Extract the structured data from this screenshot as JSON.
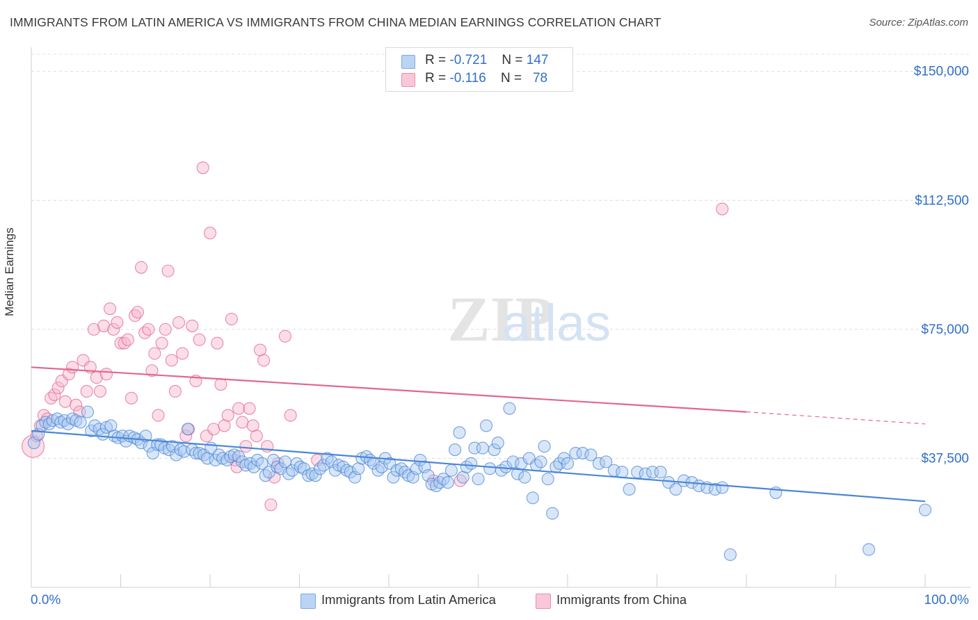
{
  "header": {
    "title": "IMMIGRANTS FROM LATIN AMERICA VS IMMIGRANTS FROM CHINA MEDIAN EARNINGS CORRELATION CHART",
    "source": "Source: ZipAtlas.com"
  },
  "watermark": {
    "zip": "ZIP",
    "atlas": "atlas"
  },
  "legend": {
    "rows": [
      {
        "r_label": "R =",
        "r_value": "-0.721",
        "n_label": "N =",
        "n_value": "147",
        "color": "#7aaae8"
      },
      {
        "r_label": "R =",
        "r_value": "-0.116",
        "n_label": "N =",
        "n_value": "78",
        "color": "#f08aaa"
      }
    ]
  },
  "bottom_legend": {
    "items": [
      {
        "label": "Immigrants from Latin America",
        "color": "#7aaae8"
      },
      {
        "label": "Immigrants from China",
        "color": "#f08aaa"
      }
    ]
  },
  "chart_data": {
    "type": "scatter",
    "title": "IMMIGRANTS FROM LATIN AMERICA VS IMMIGRANTS FROM CHINA MEDIAN EARNINGS CORRELATION CHART",
    "xlabel": "",
    "ylabel": "Median Earnings",
    "xlim": [
      0,
      100
    ],
    "ylim": [
      0,
      155000
    ],
    "x_tick_labels": [
      "0.0%",
      "100.0%"
    ],
    "y_ticks": [
      37500,
      75000,
      112500,
      150000
    ],
    "y_tick_labels": [
      "$37,500",
      "$75,000",
      "$112,500",
      "$150,000"
    ],
    "grid": true,
    "series": [
      {
        "name": "Immigrants from Latin America",
        "color": "#4a86d8",
        "fill": "#a9c8f0",
        "R": -0.721,
        "N": 147,
        "trend": {
          "x": [
            0,
            100
          ],
          "y": [
            45500,
            25000
          ]
        },
        "points": [
          [
            0.3,
            42000
          ],
          [
            0.8,
            44500
          ],
          [
            1.2,
            47000
          ],
          [
            1.6,
            48000
          ],
          [
            2.0,
            47500
          ],
          [
            2.4,
            48500
          ],
          [
            2.9,
            49000
          ],
          [
            3.3,
            48000
          ],
          [
            3.7,
            48500
          ],
          [
            4.1,
            47500
          ],
          [
            4.6,
            49000
          ],
          [
            5.0,
            48500
          ],
          [
            5.5,
            48000
          ],
          [
            6.3,
            51000
          ],
          [
            6.7,
            45500
          ],
          [
            7.1,
            47000
          ],
          [
            7.6,
            46000
          ],
          [
            8.0,
            44500
          ],
          [
            8.4,
            46500
          ],
          [
            8.9,
            47000
          ],
          [
            9.3,
            44000
          ],
          [
            9.7,
            43500
          ],
          [
            10.2,
            44000
          ],
          [
            10.6,
            42500
          ],
          [
            11.0,
            44000
          ],
          [
            11.5,
            43500
          ],
          [
            11.9,
            43000
          ],
          [
            12.3,
            42000
          ],
          [
            12.8,
            44000
          ],
          [
            13.2,
            41000
          ],
          [
            13.6,
            39000
          ],
          [
            14.1,
            41500
          ],
          [
            14.5,
            41500
          ],
          [
            14.9,
            40500
          ],
          [
            15.4,
            40000
          ],
          [
            15.8,
            41000
          ],
          [
            16.2,
            38500
          ],
          [
            16.7,
            40000
          ],
          [
            17.1,
            39500
          ],
          [
            17.5,
            46000
          ],
          [
            18.0,
            40000
          ],
          [
            18.4,
            39000
          ],
          [
            18.8,
            39000
          ],
          [
            19.3,
            38500
          ],
          [
            19.7,
            37500
          ],
          [
            20.1,
            40500
          ],
          [
            20.6,
            37000
          ],
          [
            21.0,
            38500
          ],
          [
            21.4,
            37500
          ],
          [
            21.9,
            37000
          ],
          [
            22.3,
            38000
          ],
          [
            22.7,
            38500
          ],
          [
            23.2,
            38000
          ],
          [
            23.6,
            36500
          ],
          [
            24.0,
            35500
          ],
          [
            24.5,
            36000
          ],
          [
            24.9,
            35000
          ],
          [
            25.3,
            37000
          ],
          [
            25.8,
            36000
          ],
          [
            26.2,
            32500
          ],
          [
            26.6,
            33500
          ],
          [
            27.1,
            37000
          ],
          [
            27.5,
            35000
          ],
          [
            27.9,
            34500
          ],
          [
            28.4,
            36500
          ],
          [
            28.8,
            33000
          ],
          [
            29.2,
            34000
          ],
          [
            29.7,
            36000
          ],
          [
            30.1,
            35000
          ],
          [
            30.5,
            34500
          ],
          [
            31.0,
            32500
          ],
          [
            31.4,
            33000
          ],
          [
            31.8,
            32500
          ],
          [
            32.3,
            34500
          ],
          [
            32.7,
            35500
          ],
          [
            33.1,
            37500
          ],
          [
            33.6,
            36500
          ],
          [
            34.0,
            34000
          ],
          [
            34.4,
            35500
          ],
          [
            34.9,
            35000
          ],
          [
            35.3,
            34000
          ],
          [
            35.7,
            33500
          ],
          [
            36.2,
            32000
          ],
          [
            36.6,
            34500
          ],
          [
            37.0,
            37500
          ],
          [
            37.5,
            38000
          ],
          [
            37.9,
            37000
          ],
          [
            38.3,
            36000
          ],
          [
            38.8,
            34000
          ],
          [
            39.2,
            35000
          ],
          [
            39.6,
            37500
          ],
          [
            40.1,
            36000
          ],
          [
            40.5,
            32000
          ],
          [
            40.9,
            34000
          ],
          [
            41.4,
            34500
          ],
          [
            41.8,
            33500
          ],
          [
            42.2,
            32500
          ],
          [
            42.7,
            32000
          ],
          [
            43.1,
            34500
          ],
          [
            43.5,
            37000
          ],
          [
            44.0,
            35000
          ],
          [
            44.4,
            32500
          ],
          [
            44.8,
            30000
          ],
          [
            45.3,
            29500
          ],
          [
            45.7,
            30500
          ],
          [
            46.1,
            31500
          ],
          [
            46.6,
            30500
          ],
          [
            47.0,
            34000
          ],
          [
            47.4,
            40000
          ],
          [
            47.9,
            45000
          ],
          [
            48.3,
            32000
          ],
          [
            48.7,
            35000
          ],
          [
            49.2,
            36000
          ],
          [
            49.6,
            40500
          ],
          [
            50.0,
            31500
          ],
          [
            50.5,
            40500
          ],
          [
            50.9,
            47000
          ],
          [
            51.3,
            34500
          ],
          [
            51.8,
            40000
          ],
          [
            52.2,
            42000
          ],
          [
            52.6,
            34000
          ],
          [
            53.1,
            35000
          ],
          [
            53.5,
            52000
          ],
          [
            53.9,
            36500
          ],
          [
            54.4,
            33000
          ],
          [
            54.8,
            36000
          ],
          [
            55.2,
            32000
          ],
          [
            55.7,
            37500
          ],
          [
            56.1,
            26000
          ],
          [
            56.5,
            35500
          ],
          [
            57.0,
            36500
          ],
          [
            57.4,
            41000
          ],
          [
            57.8,
            31500
          ],
          [
            58.3,
            21500
          ],
          [
            58.7,
            35000
          ],
          [
            59.1,
            36000
          ],
          [
            59.6,
            37500
          ],
          [
            60.0,
            36000
          ],
          [
            60.9,
            39000
          ],
          [
            61.7,
            39000
          ],
          [
            62.6,
            38500
          ],
          [
            63.5,
            36000
          ],
          [
            64.3,
            36500
          ],
          [
            65.2,
            34000
          ],
          [
            66.1,
            33500
          ],
          [
            66.9,
            28500
          ],
          [
            67.8,
            33500
          ],
          [
            68.7,
            33000
          ],
          [
            69.5,
            33500
          ],
          [
            70.4,
            33500
          ],
          [
            71.3,
            30500
          ],
          [
            72.1,
            28500
          ],
          [
            73.0,
            31000
          ],
          [
            73.9,
            30500
          ],
          [
            74.7,
            29500
          ],
          [
            75.6,
            29000
          ],
          [
            76.5,
            28500
          ],
          [
            77.3,
            29000
          ],
          [
            78.2,
            9500
          ],
          [
            83.3,
            27500
          ],
          [
            93.7,
            11000
          ],
          [
            100.0,
            22500
          ]
        ]
      },
      {
        "name": "Immigrants from China",
        "color": "#e2668f",
        "fill": "#f6b6cc",
        "R": -0.116,
        "N": 78,
        "trend": {
          "x": [
            0,
            80
          ],
          "y": [
            64000,
            51000
          ]
        },
        "trend_dashed": {
          "x": [
            80,
            100
          ],
          "y": [
            51000,
            47500
          ]
        },
        "points": [
          [
            0.2,
            41000
          ],
          [
            0.6,
            44000
          ],
          [
            1.0,
            47000
          ],
          [
            1.4,
            50000
          ],
          [
            1.8,
            49000
          ],
          [
            2.2,
            55000
          ],
          [
            2.6,
            56000
          ],
          [
            3.0,
            58000
          ],
          [
            3.4,
            60000
          ],
          [
            3.8,
            54000
          ],
          [
            4.2,
            62000
          ],
          [
            4.6,
            64000
          ],
          [
            5.0,
            53000
          ],
          [
            5.4,
            51000
          ],
          [
            5.8,
            66000
          ],
          [
            6.2,
            57000
          ],
          [
            6.6,
            64000
          ],
          [
            7.0,
            75000
          ],
          [
            7.3,
            61000
          ],
          [
            7.7,
            57000
          ],
          [
            8.1,
            76000
          ],
          [
            8.4,
            62000
          ],
          [
            8.8,
            81000
          ],
          [
            9.2,
            75000
          ],
          [
            9.6,
            77000
          ],
          [
            10.0,
            71000
          ],
          [
            10.4,
            71000
          ],
          [
            10.8,
            72000
          ],
          [
            11.2,
            55000
          ],
          [
            11.6,
            79000
          ],
          [
            11.9,
            80000
          ],
          [
            12.3,
            93000
          ],
          [
            12.7,
            74000
          ],
          [
            13.1,
            75000
          ],
          [
            13.5,
            63000
          ],
          [
            13.8,
            68000
          ],
          [
            14.2,
            50000
          ],
          [
            14.6,
            71000
          ],
          [
            15.0,
            75000
          ],
          [
            15.3,
            92000
          ],
          [
            15.7,
            66000
          ],
          [
            16.1,
            57000
          ],
          [
            16.5,
            77000
          ],
          [
            16.9,
            68000
          ],
          [
            17.3,
            44000
          ],
          [
            17.6,
            46000
          ],
          [
            18.0,
            76000
          ],
          [
            18.4,
            60000
          ],
          [
            18.8,
            72000
          ],
          [
            19.2,
            122000
          ],
          [
            19.6,
            44000
          ],
          [
            20.0,
            103000
          ],
          [
            20.4,
            46000
          ],
          [
            20.8,
            71000
          ],
          [
            21.2,
            59000
          ],
          [
            21.6,
            47000
          ],
          [
            22.0,
            50000
          ],
          [
            22.4,
            78000
          ],
          [
            22.8,
            37000
          ],
          [
            23.2,
            52000
          ],
          [
            23.6,
            48000
          ],
          [
            24.0,
            41000
          ],
          [
            24.4,
            52000
          ],
          [
            24.8,
            47000
          ],
          [
            25.2,
            44000
          ],
          [
            25.6,
            69000
          ],
          [
            26.0,
            66000
          ],
          [
            26.4,
            41000
          ],
          [
            26.8,
            24000
          ],
          [
            27.2,
            32000
          ],
          [
            27.6,
            36000
          ],
          [
            28.4,
            73000
          ],
          [
            29.0,
            50000
          ],
          [
            32.0,
            37000
          ],
          [
            45.0,
            31000
          ],
          [
            48.0,
            31000
          ],
          [
            77.3,
            110000
          ],
          [
            23.0,
            35000
          ]
        ]
      }
    ]
  }
}
